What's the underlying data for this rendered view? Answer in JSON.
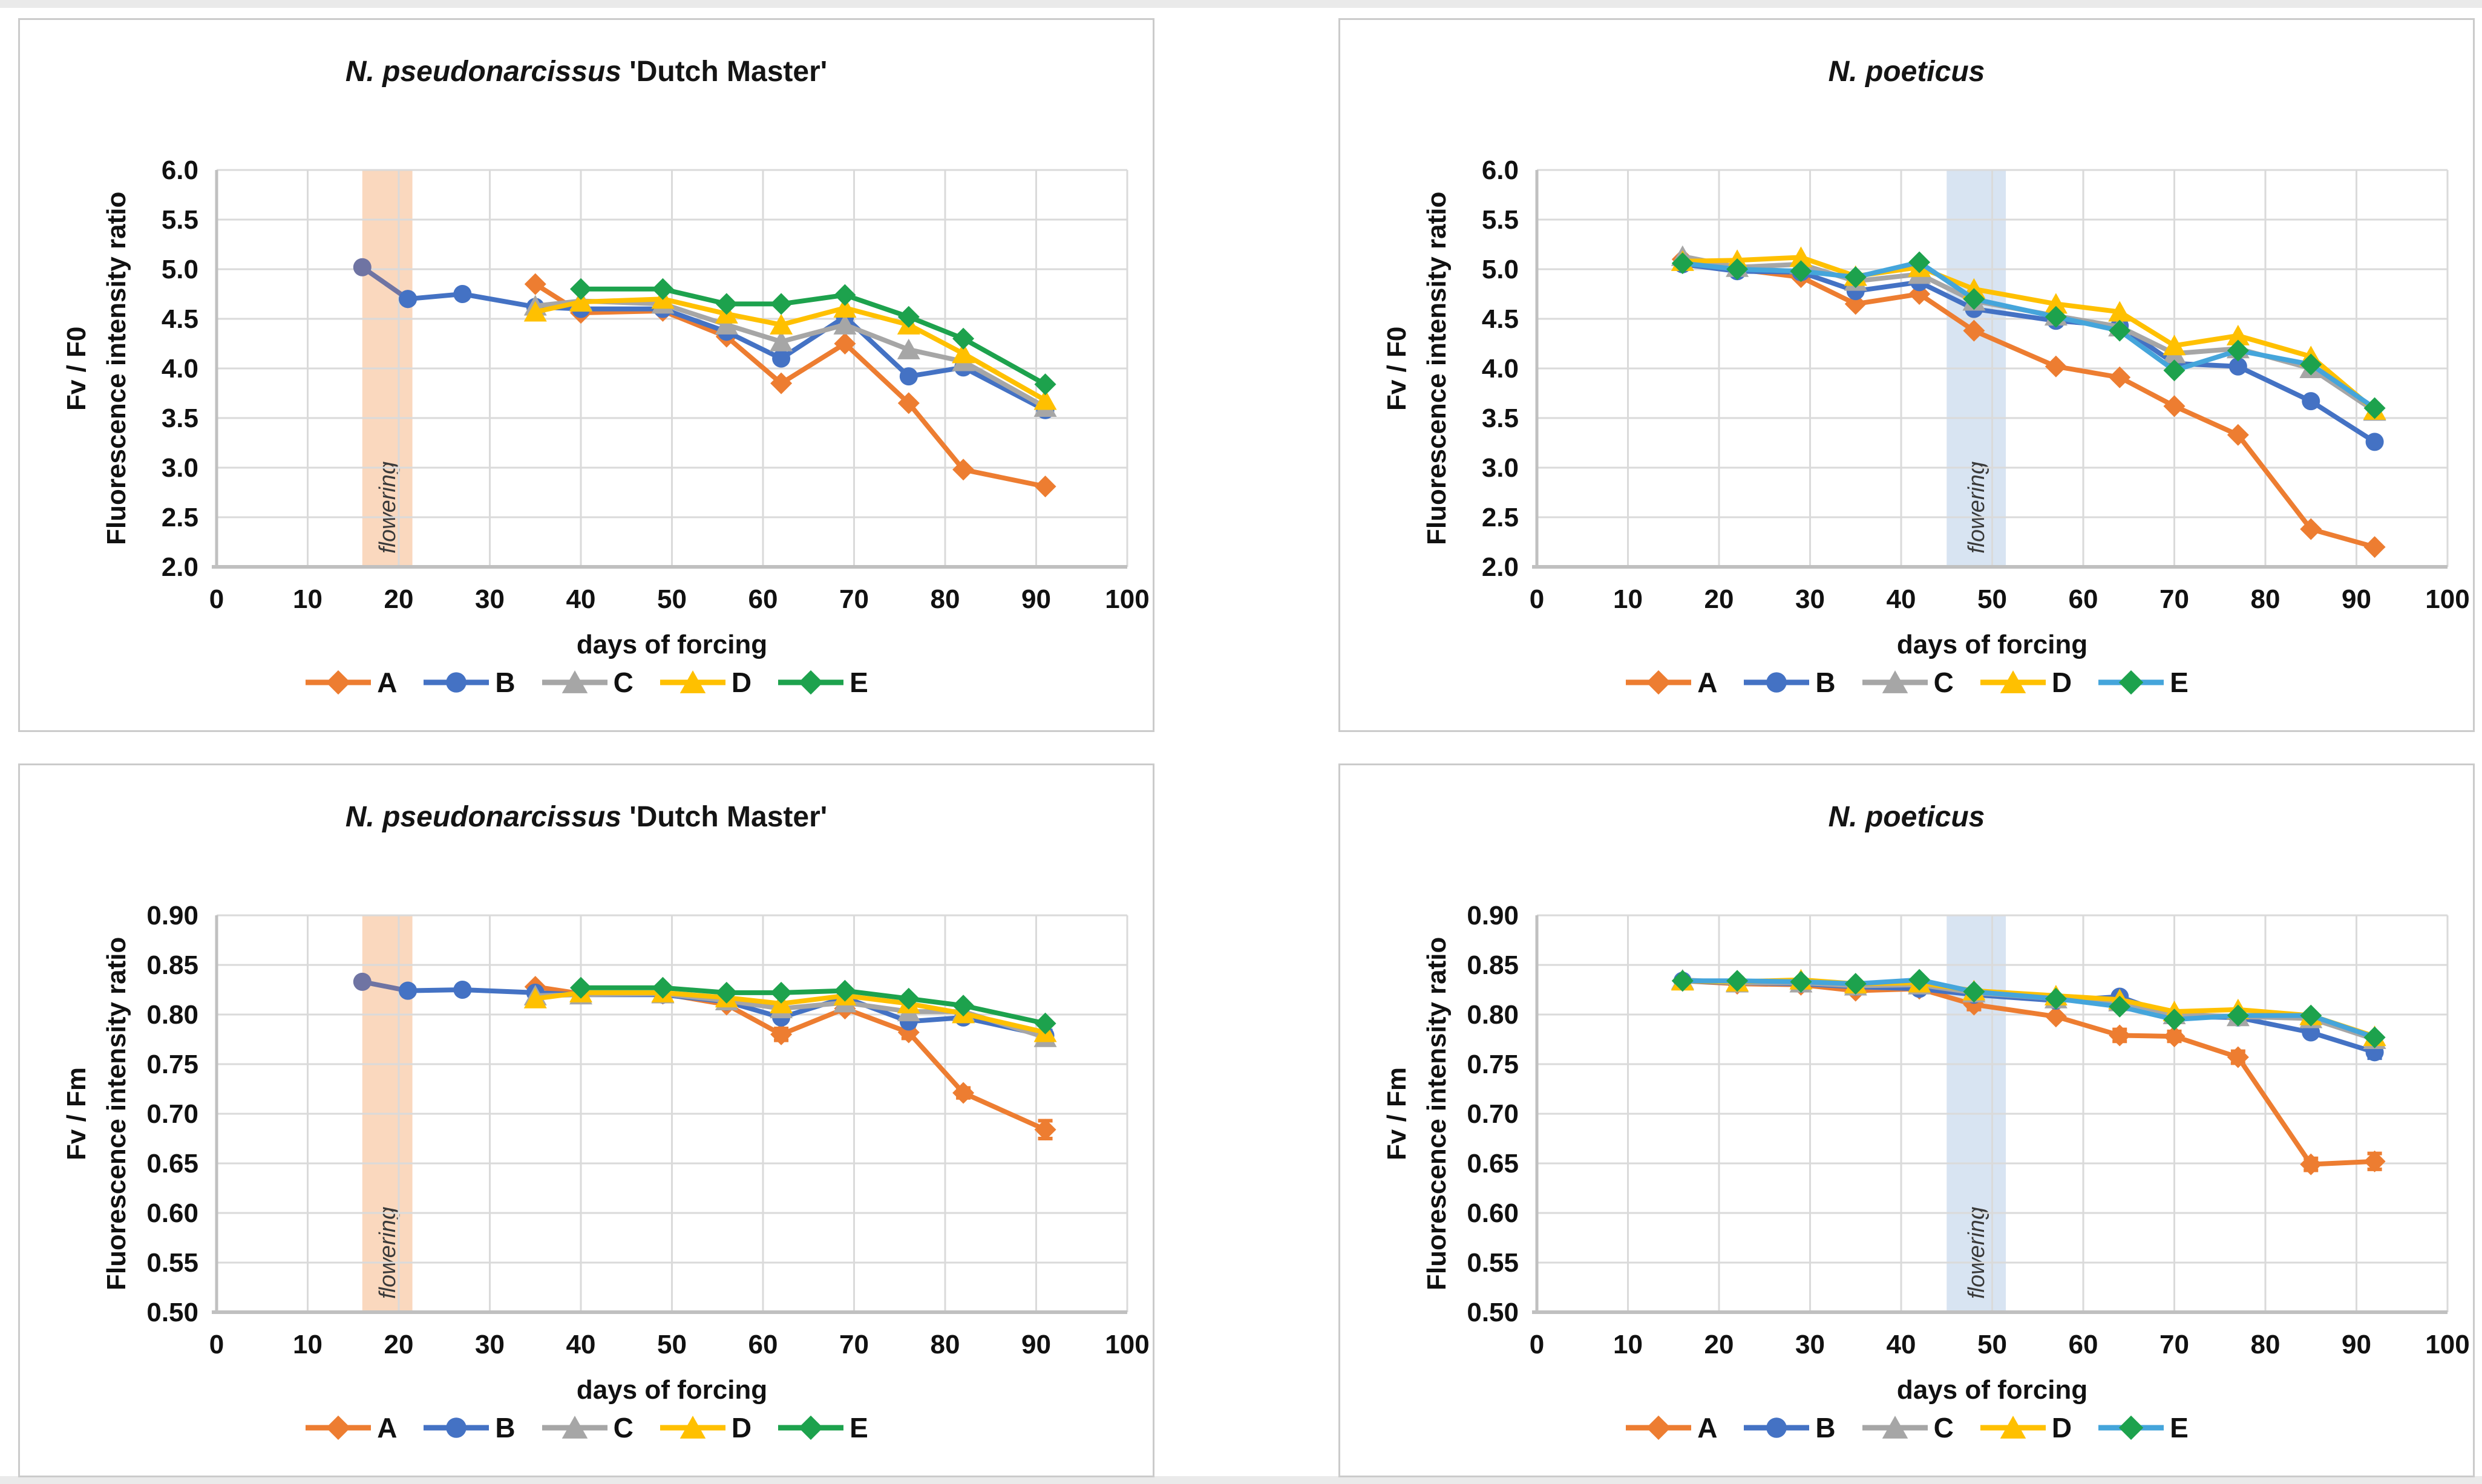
{
  "page": {
    "edge_strip_color": "#EAEAEA",
    "background": "#FFFFFF"
  },
  "styles": {
    "grid_color": "#DADADA",
    "spine_color": "#C0C0C0",
    "series_colors": {
      "A": "#ED7D31",
      "B": "#4472C4",
      "C": "#A6A6A6",
      "D": "#FFC000",
      "E_green": "#1DA24D",
      "E_line_right": "#45A5DB",
      "pre": "#6F74A3"
    },
    "band_color_left": "#FAD8BE",
    "band_color_right": "#D8E4F2"
  },
  "chart_data": [
    {
      "type": "line",
      "title_italic": "N. pseudonarcissus",
      "title_regular": " 'Dutch Master'",
      "ylabel_line1": "Fv / F0",
      "ylabel_line2": "Fluorescence intensity ratio",
      "xlabel": "days of forcing",
      "x_axis": {
        "min": 0,
        "max": 100,
        "ticks": [
          0,
          10,
          20,
          30,
          40,
          50,
          60,
          70,
          80,
          90,
          100
        ],
        "tick_labels": [
          "0",
          "10",
          "20",
          "30",
          "40",
          "50",
          "60",
          "70",
          "80",
          "90",
          "100"
        ]
      },
      "y_axis": {
        "min": 2.0,
        "max": 6.0,
        "ticks": [
          2.0,
          2.5,
          3.0,
          3.5,
          4.0,
          4.5,
          5.0,
          5.5,
          6.0
        ],
        "tick_labels": [
          "2.0",
          "2.5",
          "3.0",
          "3.5",
          "4.0",
          "4.5",
          "5.0",
          "5.5",
          "6.0"
        ]
      },
      "flowering": {
        "label": "flowering",
        "x0": 16,
        "x1": 21.5,
        "color": "#FAD8BE"
      },
      "series": [
        {
          "name": "start",
          "legend": false,
          "marker": "circle",
          "color": "#6F74A3",
          "x": [
            16,
            21
          ],
          "y": [
            5.02,
            4.7
          ]
        },
        {
          "name": "A",
          "marker": "diamond",
          "color": "#ED7D31",
          "x": [
            35,
            40,
            49,
            56,
            62,
            69,
            76,
            82,
            91
          ],
          "y": [
            4.85,
            4.56,
            4.58,
            4.32,
            3.85,
            4.25,
            3.65,
            2.98,
            2.81
          ]
        },
        {
          "name": "B",
          "marker": "circle",
          "color": "#4472C4",
          "x": [
            21,
            27,
            35,
            40,
            49,
            56,
            62,
            69,
            76,
            82,
            91
          ],
          "y": [
            4.7,
            4.75,
            4.62,
            4.6,
            4.6,
            4.37,
            4.1,
            4.52,
            3.92,
            4.01,
            3.58
          ]
        },
        {
          "name": "C",
          "marker": "triangle",
          "color": "#A6A6A6",
          "x": [
            35,
            40,
            49,
            56,
            62,
            69,
            76,
            82,
            91
          ],
          "y": [
            4.63,
            4.68,
            4.65,
            4.44,
            4.27,
            4.44,
            4.19,
            4.07,
            3.61
          ]
        },
        {
          "name": "D",
          "marker": "triangle",
          "color": "#FFC000",
          "x": [
            35,
            40,
            49,
            56,
            62,
            69,
            76,
            82,
            91
          ],
          "y": [
            4.57,
            4.67,
            4.7,
            4.55,
            4.44,
            4.61,
            4.44,
            4.15,
            3.68
          ]
        },
        {
          "name": "E",
          "marker": "diamond",
          "color": "#1DA24D",
          "x": [
            40,
            49,
            56,
            62,
            69,
            76,
            82,
            91
          ],
          "y": [
            4.8,
            4.8,
            4.65,
            4.65,
            4.74,
            4.52,
            4.3,
            3.84
          ]
        }
      ]
    },
    {
      "type": "line",
      "title_italic": "N. poeticus",
      "title_regular": "",
      "ylabel_line1": "Fv / F0",
      "ylabel_line2": "Fluorescence intensity ratio",
      "xlabel": "days of forcing",
      "x_axis": {
        "min": 0,
        "max": 100,
        "ticks": [
          0,
          10,
          20,
          30,
          40,
          50,
          60,
          70,
          80,
          90,
          100
        ],
        "tick_labels": [
          "0",
          "10",
          "20",
          "30",
          "40",
          "50",
          "60",
          "70",
          "80",
          "90",
          "100"
        ]
      },
      "y_axis": {
        "min": 2.0,
        "max": 6.0,
        "ticks": [
          2.0,
          2.5,
          3.0,
          3.5,
          4.0,
          4.5,
          5.0,
          5.5,
          6.0
        ],
        "tick_labels": [
          "2.0",
          "2.5",
          "3.0",
          "3.5",
          "4.0",
          "4.5",
          "5.0",
          "5.5",
          "6.0"
        ]
      },
      "flowering": {
        "label": "flowering",
        "x0": 45,
        "x1": 51.5,
        "color": "#D8E4F2"
      },
      "series": [
        {
          "name": "A",
          "marker": "diamond",
          "color": "#ED7D31",
          "x": [
            16,
            22,
            29,
            35,
            42,
            48,
            57,
            64,
            70,
            77,
            85,
            92
          ],
          "y": [
            5.1,
            5.0,
            4.92,
            4.65,
            4.75,
            4.38,
            4.02,
            3.91,
            3.62,
            3.33,
            2.38,
            2.2
          ]
        },
        {
          "name": "B",
          "marker": "circle",
          "color": "#4472C4",
          "x": [
            16,
            22,
            29,
            35,
            42,
            48,
            57,
            64,
            70,
            77,
            85,
            92
          ],
          "y": [
            5.05,
            4.98,
            4.97,
            4.78,
            4.87,
            4.6,
            4.48,
            4.43,
            4.05,
            4.02,
            3.67,
            3.26
          ]
        },
        {
          "name": "C",
          "marker": "triangle",
          "color": "#A6A6A6",
          "x": [
            16,
            22,
            29,
            35,
            42,
            48,
            57,
            64,
            70,
            77,
            85,
            92
          ],
          "y": [
            5.13,
            5.02,
            5.05,
            4.88,
            4.95,
            4.68,
            4.53,
            4.42,
            4.15,
            4.2,
            4.0,
            3.57
          ]
        },
        {
          "name": "D",
          "marker": "triangle",
          "color": "#FFC000",
          "x": [
            16,
            22,
            29,
            35,
            42,
            48,
            57,
            64,
            70,
            77,
            85,
            92
          ],
          "y": [
            5.08,
            5.09,
            5.12,
            4.93,
            5.02,
            4.8,
            4.65,
            4.57,
            4.23,
            4.33,
            4.12,
            3.58
          ]
        },
        {
          "name": "E",
          "marker": "diamond",
          "color": "#45A5DB",
          "marker_color": "#1DA24D",
          "x": [
            16,
            22,
            29,
            35,
            42,
            48,
            57,
            64,
            70,
            77,
            85,
            92
          ],
          "y": [
            5.06,
            5.0,
            4.98,
            4.92,
            5.07,
            4.7,
            4.52,
            4.38,
            3.98,
            4.18,
            4.04,
            3.6
          ]
        }
      ]
    },
    {
      "type": "line",
      "title_italic": "N. pseudonarcissus",
      "title_regular": " 'Dutch Master'",
      "ylabel_line1": "Fv / Fm",
      "ylabel_line2": "Fluorescence intensity ratio",
      "xlabel": "days of forcing",
      "x_axis": {
        "min": 0,
        "max": 100,
        "ticks": [
          0,
          10,
          20,
          30,
          40,
          50,
          60,
          70,
          80,
          90,
          100
        ],
        "tick_labels": [
          "0",
          "10",
          "20",
          "30",
          "40",
          "50",
          "60",
          "70",
          "80",
          "90",
          "100"
        ]
      },
      "y_axis": {
        "min": 0.5,
        "max": 0.9,
        "ticks": [
          0.5,
          0.55,
          0.6,
          0.65,
          0.7,
          0.75,
          0.8,
          0.85,
          0.9
        ],
        "tick_labels": [
          "0.50",
          "0.55",
          "0.60",
          "0.65",
          "0.70",
          "0.75",
          "0.80",
          "0.85",
          "0.90"
        ]
      },
      "flowering": {
        "label": "flowering",
        "x0": 16,
        "x1": 21.5,
        "color": "#FAD8BE"
      },
      "series": [
        {
          "name": "start",
          "legend": false,
          "marker": "circle",
          "color": "#6F74A3",
          "x": [
            16,
            21
          ],
          "y": [
            0.833,
            0.824
          ]
        },
        {
          "name": "A",
          "marker": "diamond",
          "color": "#ED7D31",
          "x": [
            35,
            40,
            49,
            56,
            62,
            69,
            76,
            82,
            91
          ],
          "y": [
            0.828,
            0.821,
            0.821,
            0.81,
            0.78,
            0.806,
            0.782,
            0.721,
            0.684
          ],
          "err": [
            0,
            0,
            0,
            0,
            0.006,
            0,
            0.006,
            0.005,
            0.009
          ]
        },
        {
          "name": "B",
          "marker": "circle",
          "color": "#4472C4",
          "x": [
            21,
            27,
            35,
            40,
            49,
            56,
            62,
            69,
            76,
            82,
            91
          ],
          "y": [
            0.824,
            0.825,
            0.822,
            0.82,
            0.82,
            0.813,
            0.797,
            0.817,
            0.793,
            0.797,
            0.779
          ],
          "err": [
            0,
            0,
            0,
            0,
            0,
            0,
            0,
            0,
            0,
            0,
            0.005
          ]
        },
        {
          "name": "C",
          "marker": "triangle",
          "color": "#A6A6A6",
          "x": [
            35,
            40,
            49,
            56,
            62,
            69,
            76,
            82,
            91
          ],
          "y": [
            0.819,
            0.82,
            0.821,
            0.814,
            0.806,
            0.812,
            0.803,
            0.803,
            0.777
          ]
        },
        {
          "name": "D",
          "marker": "triangle",
          "color": "#FFC000",
          "x": [
            35,
            40,
            49,
            56,
            62,
            69,
            76,
            82,
            91
          ],
          "y": [
            0.816,
            0.822,
            0.822,
            0.817,
            0.811,
            0.819,
            0.811,
            0.801,
            0.782
          ]
        },
        {
          "name": "E",
          "marker": "diamond",
          "color": "#1DA24D",
          "x": [
            40,
            49,
            56,
            62,
            69,
            76,
            82,
            91
          ],
          "y": [
            0.827,
            0.827,
            0.822,
            0.822,
            0.824,
            0.816,
            0.809,
            0.791
          ]
        }
      ]
    },
    {
      "type": "line",
      "title_italic": "N. poeticus",
      "title_regular": "",
      "ylabel_line1": "Fv / Fm",
      "ylabel_line2": "Fluorescence intensity ratio",
      "xlabel": "days of forcing",
      "x_axis": {
        "min": 0,
        "max": 100,
        "ticks": [
          0,
          10,
          20,
          30,
          40,
          50,
          60,
          70,
          80,
          90,
          100
        ],
        "tick_labels": [
          "0",
          "10",
          "20",
          "30",
          "40",
          "50",
          "60",
          "70",
          "80",
          "90",
          "100"
        ]
      },
      "y_axis": {
        "min": 0.5,
        "max": 0.9,
        "ticks": [
          0.5,
          0.55,
          0.6,
          0.65,
          0.7,
          0.75,
          0.8,
          0.85,
          0.9
        ],
        "tick_labels": [
          "0.50",
          "0.55",
          "0.60",
          "0.65",
          "0.70",
          "0.75",
          "0.80",
          "0.85",
          "0.90"
        ]
      },
      "flowering": {
        "label": "flowering",
        "x0": 45,
        "x1": 51.5,
        "color": "#D8E4F2"
      },
      "series": [
        {
          "name": "A",
          "marker": "diamond",
          "color": "#ED7D31",
          "x": [
            16,
            22,
            29,
            35,
            42,
            48,
            57,
            64,
            70,
            77,
            85,
            92
          ],
          "y": [
            0.834,
            0.831,
            0.83,
            0.824,
            0.826,
            0.81,
            0.798,
            0.779,
            0.778,
            0.757,
            0.649,
            0.652
          ],
          "err": [
            0,
            0,
            0,
            0,
            0,
            0.005,
            0,
            0.006,
            0.005,
            0.006,
            0.006,
            0.008
          ]
        },
        {
          "name": "B",
          "marker": "circle",
          "color": "#4472C4",
          "x": [
            16,
            22,
            29,
            35,
            42,
            48,
            57,
            64,
            70,
            77,
            85,
            92
          ],
          "y": [
            0.834,
            0.832,
            0.831,
            0.828,
            0.826,
            0.82,
            0.814,
            0.818,
            0.798,
            0.797,
            0.782,
            0.762
          ],
          "err": [
            0,
            0,
            0,
            0,
            0,
            0,
            0,
            0,
            0,
            0,
            0,
            0.006
          ]
        },
        {
          "name": "C",
          "marker": "triangle",
          "color": "#A6A6A6",
          "x": [
            16,
            22,
            29,
            35,
            42,
            48,
            57,
            64,
            70,
            77,
            85,
            92
          ],
          "y": [
            0.835,
            0.832,
            0.832,
            0.829,
            0.83,
            0.822,
            0.816,
            0.813,
            0.8,
            0.798,
            0.796,
            0.775
          ]
        },
        {
          "name": "D",
          "marker": "triangle",
          "color": "#FFC000",
          "x": [
            16,
            22,
            29,
            35,
            42,
            48,
            57,
            64,
            70,
            77,
            85,
            92
          ],
          "y": [
            0.834,
            0.833,
            0.835,
            0.831,
            0.832,
            0.824,
            0.819,
            0.815,
            0.803,
            0.805,
            0.799,
            0.778
          ]
        },
        {
          "name": "E",
          "marker": "diamond",
          "color": "#45A5DB",
          "marker_color": "#1DA24D",
          "x": [
            16,
            22,
            29,
            35,
            42,
            48,
            57,
            64,
            70,
            77,
            85,
            92
          ],
          "y": [
            0.834,
            0.834,
            0.833,
            0.831,
            0.835,
            0.823,
            0.816,
            0.808,
            0.795,
            0.799,
            0.799,
            0.777
          ]
        }
      ]
    }
  ]
}
